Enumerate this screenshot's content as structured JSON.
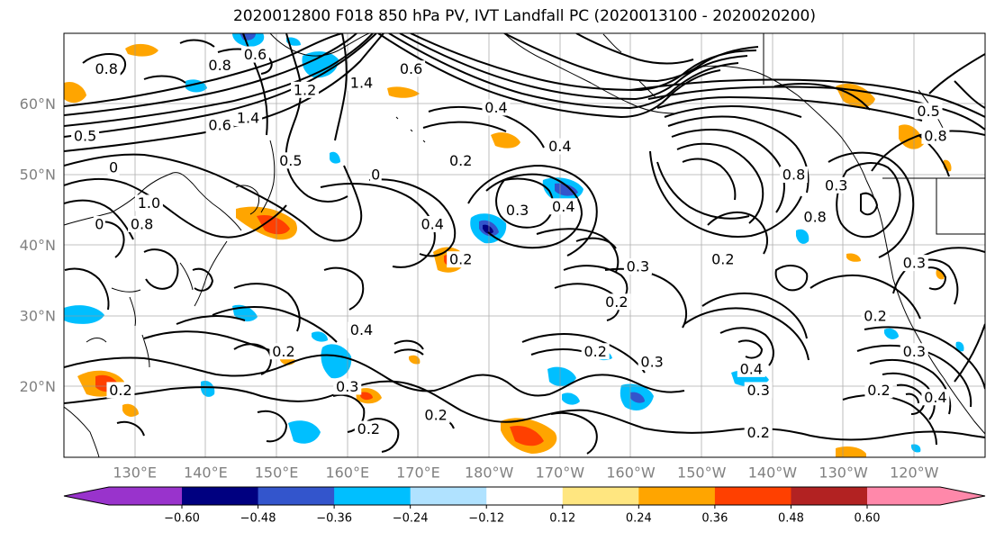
{
  "title": "2020012800 F018 850 hPa PV, IVT Landfall PC (2020013100 - 2020020200)",
  "lat_labels": [
    {
      "text": "60°N",
      "lat": 60
    },
    {
      "text": "50°N",
      "lat": 50
    },
    {
      "text": "40°N",
      "lat": 40
    },
    {
      "text": "30°N",
      "lat": 30
    },
    {
      "text": "20°N",
      "lat": 20
    }
  ],
  "lon_labels": [
    {
      "text": "130°E",
      "lon": 130
    },
    {
      "text": "140°E",
      "lon": 140
    },
    {
      "text": "150°E",
      "lon": 150
    },
    {
      "text": "160°E",
      "lon": 160
    },
    {
      "text": "170°E",
      "lon": 170
    },
    {
      "text": "180°W",
      "lon": 180
    },
    {
      "text": "170°W",
      "lon": 190
    },
    {
      "text": "160°W",
      "lon": 200
    },
    {
      "text": "150°W",
      "lon": 210
    },
    {
      "text": "140°W",
      "lon": 220
    },
    {
      "text": "130°W",
      "lon": 230
    },
    {
      "text": "120°W",
      "lon": 240
    }
  ],
  "colorbar": {
    "colors": [
      "#9933cc",
      "#000080",
      "#3355cc",
      "#00bfff",
      "#b0e2ff",
      "#ffffff",
      "#ffe680",
      "#ffa500",
      "#ff4000",
      "#b22222",
      "#ff88aa"
    ],
    "tick_labels": [
      "−0.60",
      "−0.48",
      "−0.36",
      "−0.24",
      "−0.12",
      "0.12",
      "0.24",
      "0.36",
      "0.48",
      "0.60"
    ]
  },
  "contour_labels": [
    {
      "text": "0.8",
      "lon": 126,
      "lat": 65
    },
    {
      "text": "0.8",
      "lon": 142,
      "lat": 65.5
    },
    {
      "text": "0.6",
      "lon": 147,
      "lat": 67
    },
    {
      "text": "1.2",
      "lon": 154,
      "lat": 62
    },
    {
      "text": "1.4",
      "lon": 162,
      "lat": 63
    },
    {
      "text": "0.6",
      "lon": 169,
      "lat": 65
    },
    {
      "text": "1.4",
      "lon": 146,
      "lat": 58
    },
    {
      "text": "0.6",
      "lon": 142,
      "lat": 57
    },
    {
      "text": "0.5",
      "lon": 123,
      "lat": 55.5
    },
    {
      "text": "0.5",
      "lon": 152,
      "lat": 52
    },
    {
      "text": "0",
      "lon": 127,
      "lat": 51
    },
    {
      "text": "1.0",
      "lon": 132,
      "lat": 46
    },
    {
      "text": "0.8",
      "lon": 131,
      "lat": 43
    },
    {
      "text": "0",
      "lon": 125,
      "lat": 43
    },
    {
      "text": "0",
      "lon": 164,
      "lat": 50
    },
    {
      "text": "0.4",
      "lon": 181,
      "lat": 59.5
    },
    {
      "text": "0.2",
      "lon": 176,
      "lat": 52
    },
    {
      "text": "0.4",
      "lon": 172,
      "lat": 43
    },
    {
      "text": "0.3",
      "lon": 184,
      "lat": 45
    },
    {
      "text": "0.4",
      "lon": 190.5,
      "lat": 45.5
    },
    {
      "text": "0.3",
      "lon": 201,
      "lat": 37
    },
    {
      "text": "0.2",
      "lon": 198,
      "lat": 32
    },
    {
      "text": "0.2",
      "lon": 176,
      "lat": 38
    },
    {
      "text": "0.8",
      "lon": 223,
      "lat": 50
    },
    {
      "text": "0.8",
      "lon": 226,
      "lat": 44
    },
    {
      "text": "0.3",
      "lon": 229,
      "lat": 48.5
    },
    {
      "text": "0.2",
      "lon": 213,
      "lat": 38
    },
    {
      "text": "0.3",
      "lon": 240,
      "lat": 37.5
    },
    {
      "text": "0.2",
      "lon": 234.5,
      "lat": 30
    },
    {
      "text": "0.3",
      "lon": 240,
      "lat": 25
    },
    {
      "text": "0.2",
      "lon": 235,
      "lat": 19.5
    },
    {
      "text": "0.4",
      "lon": 243,
      "lat": 18.5
    },
    {
      "text": "0.4",
      "lon": 162,
      "lat": 28
    },
    {
      "text": "0.2",
      "lon": 151,
      "lat": 25
    },
    {
      "text": "0.2",
      "lon": 128,
      "lat": 19.5
    },
    {
      "text": "0.3",
      "lon": 160,
      "lat": 20
    },
    {
      "text": "0.2",
      "lon": 172.5,
      "lat": 16
    },
    {
      "text": "0.2",
      "lon": 163,
      "lat": 14
    },
    {
      "text": "0.2",
      "lon": 195,
      "lat": 25
    },
    {
      "text": "0.3",
      "lon": 203,
      "lat": 23.5
    },
    {
      "text": "0.4",
      "lon": 217,
      "lat": 22.5
    },
    {
      "text": "0.3",
      "lon": 218,
      "lat": 19.5
    },
    {
      "text": "0.2",
      "lon": 218,
      "lat": 13.5
    },
    {
      "text": "0.5",
      "lon": 242,
      "lat": 59
    },
    {
      "text": "0.8",
      "lon": 243,
      "lat": 55.5
    },
    {
      "text": "0.4",
      "lon": 190,
      "lat": 54
    }
  ]
}
